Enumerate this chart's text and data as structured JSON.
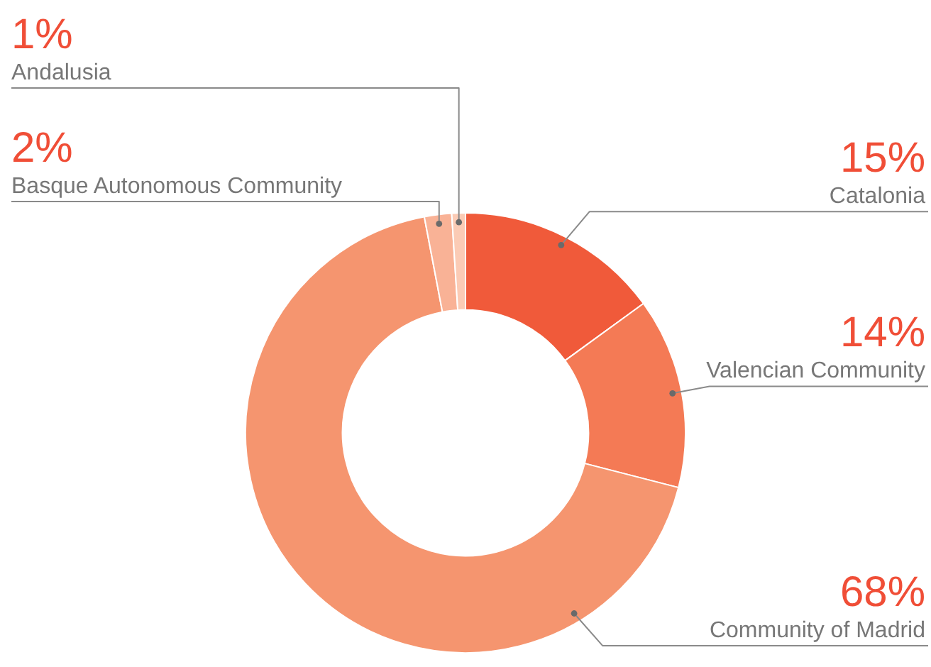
{
  "chart_data": {
    "type": "donut",
    "categories": [
      "Catalonia",
      "Valencian Community",
      "Community of Madrid",
      "Basque Autonomous Community",
      "Andalusia"
    ],
    "values": [
      15,
      14,
      68,
      2,
      1
    ],
    "colors": [
      "#f05a3a",
      "#f47a55",
      "#f5956f",
      "#f9b296",
      "#fbcbb5"
    ],
    "value_labels": [
      "15%",
      "14%",
      "68%",
      "2%",
      "1%"
    ],
    "legend": false
  }
}
